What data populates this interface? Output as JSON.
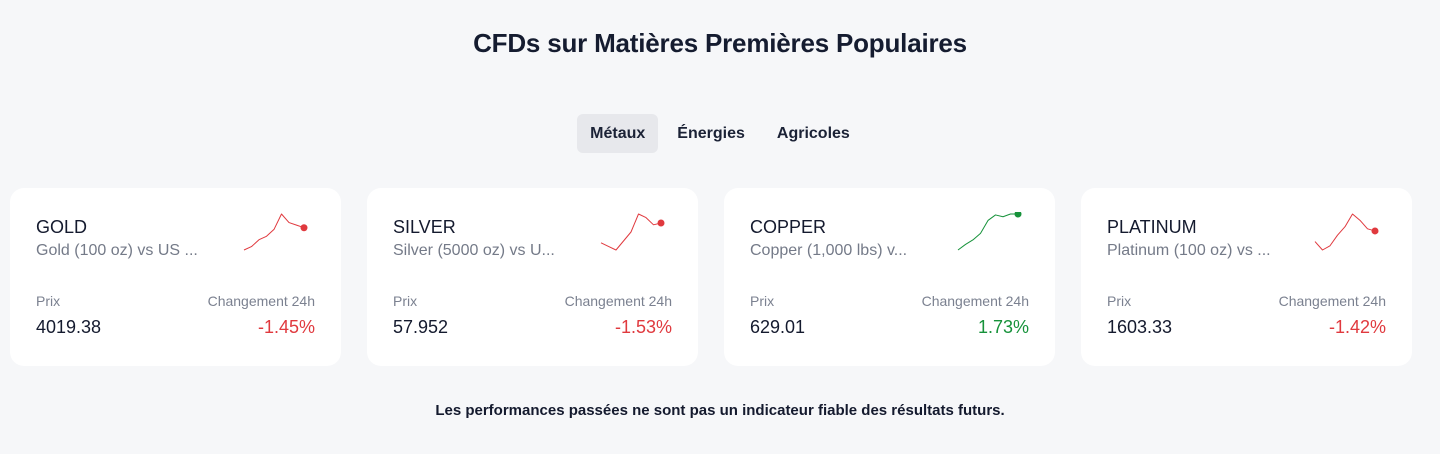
{
  "title": "CFDs sur Matières Premières Populaires",
  "tabs": [
    {
      "label": "Métaux",
      "active": true
    },
    {
      "label": "Énergies",
      "active": false
    },
    {
      "label": "Agricoles",
      "active": false
    }
  ],
  "labels": {
    "price": "Prix",
    "change": "Changement 24h"
  },
  "colors": {
    "down": "#e0393e",
    "up": "#16923a"
  },
  "cards": [
    {
      "symbol": "GOLD",
      "description": "Gold (100 oz) vs US ...",
      "price": "4019.38",
      "change": "-1.45%",
      "direction": "down",
      "sparkline": [
        2,
        6,
        14,
        18,
        26,
        44,
        34,
        31,
        28
      ]
    },
    {
      "symbol": "SILVER",
      "description": "Silver (5000 oz) vs U...",
      "price": "57.952",
      "change": "-1.53%",
      "direction": "down",
      "sparkline": [
        10,
        6,
        2,
        12,
        22,
        42,
        38,
        30,
        32
      ]
    },
    {
      "symbol": "COPPER",
      "description": "Copper (1,000 lbs) v...",
      "price": "629.01",
      "change": "1.73%",
      "direction": "up",
      "sparkline": [
        2,
        8,
        13,
        20,
        34,
        40,
        38,
        41,
        41
      ]
    },
    {
      "symbol": "PLATINUM",
      "description": "Platinum (100 oz) vs ...",
      "price": "1603.33",
      "change": "-1.42%",
      "direction": "down",
      "sparkline": [
        10,
        2,
        6,
        16,
        24,
        36,
        30,
        22,
        20
      ]
    }
  ],
  "disclaimer": "Les performances passées ne sont pas un indicateur fiable des résultats futurs."
}
